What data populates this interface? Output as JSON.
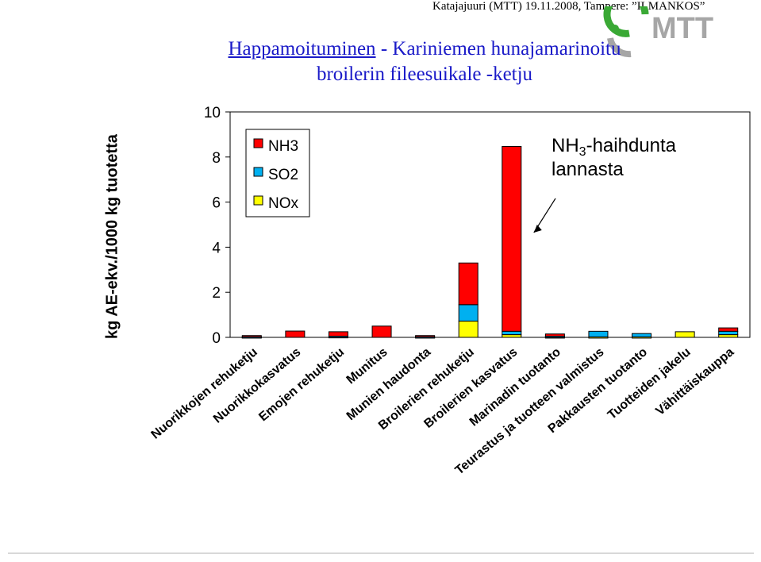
{
  "header": {
    "info": "Katajajuuri (MTT) 19.11.2008, Tampere: ”ILMANKOS”",
    "logo_text": "MTT"
  },
  "colors": {
    "NH3": "#ff0000",
    "SO2": "#00b0f0",
    "NOx": "#ffff00",
    "title": "#1a1ac8",
    "logo_green": "#3aa935",
    "logo_gray": "#a6a6a6"
  },
  "chart_data": {
    "type": "bar",
    "stacked": true,
    "title_part1": "Happamoituminen",
    "title_part2": " - Kariniemen hunajamarinoitu",
    "title_line2": "broilerin fileesuikale -ketju",
    "ylabel": "kg AE-ekv./1000 kg tuotetta",
    "ylim": [
      0,
      10
    ],
    "yticks": [
      "0",
      "2",
      "4",
      "6",
      "8",
      "10"
    ],
    "grid": false,
    "legend_position": "top-left",
    "categories": [
      "Nuorikkojen rehuketju",
      "Nuorikkokasvatus",
      "Emojen rehuketju",
      "Munitus",
      "Munien haudonta",
      "Broilerien rehuketju",
      "Broilerien kasvatus",
      "Marinadin tuotanto",
      "Teurastus ja tuotteen valmistus",
      "Pakkausten tuotanto",
      "Tuotteiden jakelu",
      "Vähittäiskauppa"
    ],
    "series": [
      {
        "name": "NOx",
        "color": "#ffff00",
        "values": [
          0.02,
          0.0,
          0.03,
          0.0,
          0.02,
          0.72,
          0.12,
          0.02,
          0.02,
          0.02,
          0.25,
          0.12
        ]
      },
      {
        "name": "SO2",
        "color": "#00b0f0",
        "values": [
          0.01,
          0.0,
          0.02,
          0.0,
          0.01,
          0.73,
          0.15,
          0.03,
          0.25,
          0.15,
          0.0,
          0.15
        ]
      },
      {
        "name": "NH3",
        "color": "#ff0000",
        "values": [
          0.05,
          0.28,
          0.2,
          0.5,
          0.05,
          1.85,
          8.2,
          0.1,
          0.0,
          0.0,
          0.0,
          0.15
        ]
      }
    ],
    "legend_order": [
      "NH3",
      "SO2",
      "NOx"
    ],
    "annotation": {
      "text_prefix": "NH",
      "text_sub": "3",
      "text_suffix": "-haihdunta",
      "text_line2": "lannasta",
      "target_category": "Broilerien kasvatus"
    }
  }
}
